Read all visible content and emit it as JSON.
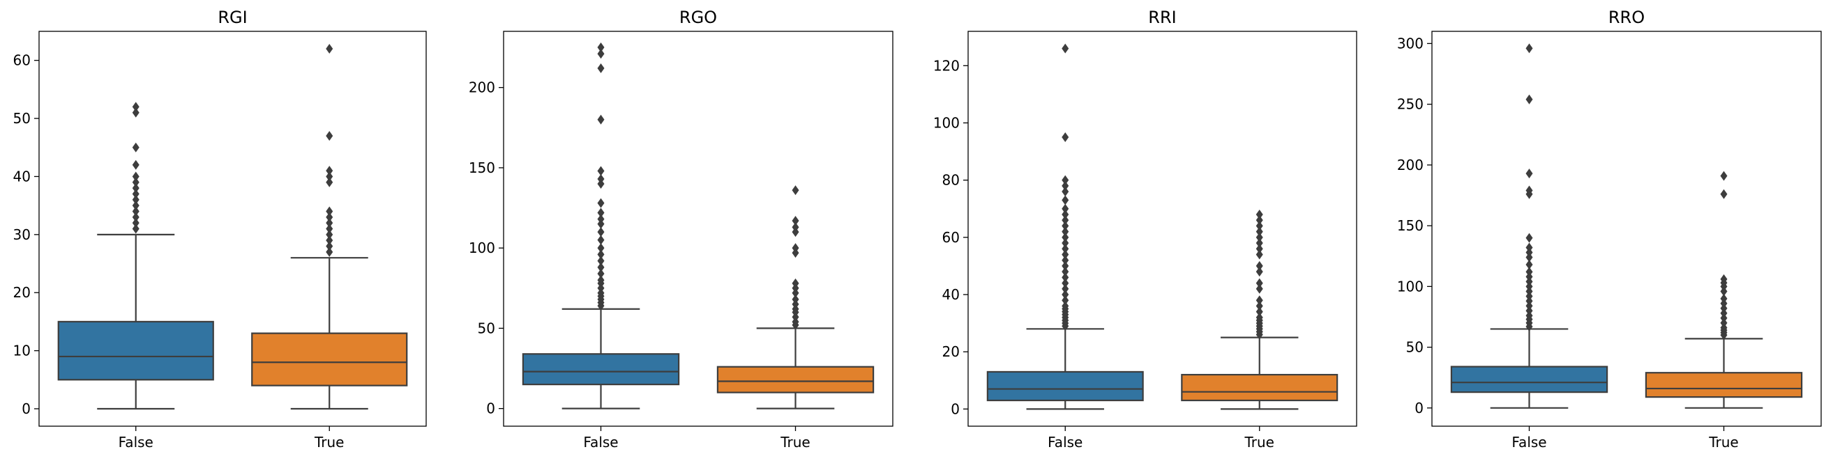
{
  "chart_data": [
    {
      "type": "box",
      "title": "RGI",
      "xlabel": "",
      "ylabel": "",
      "categories": [
        "False",
        "True"
      ],
      "ylim": [
        -3,
        65
      ],
      "yticks": [
        0,
        10,
        20,
        30,
        40,
        50,
        60
      ],
      "grid": false,
      "boxes": [
        {
          "category": "False",
          "color": "#3274a1",
          "min": 0,
          "q1": 5,
          "median": 9,
          "q3": 15,
          "max": 30,
          "outliers": [
            31,
            32,
            33,
            34,
            35,
            36,
            37,
            38,
            39,
            40,
            42,
            45,
            51,
            52
          ]
        },
        {
          "category": "True",
          "color": "#e1812c",
          "min": 0,
          "q1": 4,
          "median": 8,
          "q3": 13,
          "max": 26,
          "outliers": [
            27,
            28,
            29,
            30,
            31,
            32,
            33,
            34,
            39,
            40,
            41,
            47,
            62
          ]
        }
      ]
    },
    {
      "type": "box",
      "title": "RGO",
      "xlabel": "",
      "ylabel": "",
      "categories": [
        "False",
        "True"
      ],
      "ylim": [
        -11,
        235
      ],
      "yticks": [
        0,
        50,
        100,
        150,
        200
      ],
      "grid": false,
      "boxes": [
        {
          "category": "False",
          "color": "#3274a1",
          "min": 0,
          "q1": 15,
          "median": 23,
          "q3": 34,
          "max": 62,
          "outliers": [
            64,
            66,
            68,
            70,
            72,
            75,
            78,
            80,
            84,
            88,
            92,
            96,
            100,
            105,
            110,
            115,
            118,
            122,
            128,
            140,
            143,
            148,
            180,
            212,
            221,
            225
          ]
        },
        {
          "category": "True",
          "color": "#e1812c",
          "min": 0,
          "q1": 10,
          "median": 17,
          "q3": 26,
          "max": 50,
          "outliers": [
            52,
            54,
            57,
            60,
            62,
            65,
            68,
            72,
            75,
            78,
            97,
            100,
            110,
            113,
            117,
            136
          ]
        }
      ]
    },
    {
      "type": "box",
      "title": "RRI",
      "xlabel": "",
      "ylabel": "",
      "categories": [
        "False",
        "True"
      ],
      "ylim": [
        -6,
        132
      ],
      "yticks": [
        0,
        20,
        40,
        60,
        80,
        100,
        120
      ],
      "grid": false,
      "boxes": [
        {
          "category": "False",
          "color": "#3274a1",
          "min": 0,
          "q1": 3,
          "median": 7,
          "q3": 13,
          "max": 28,
          "outliers": [
            29,
            30,
            31,
            32,
            33,
            34,
            35,
            36,
            38,
            40,
            42,
            44,
            46,
            48,
            50,
            52,
            54,
            56,
            58,
            60,
            62,
            64,
            66,
            68,
            70,
            73,
            76,
            78,
            80,
            95,
            126
          ]
        },
        {
          "category": "True",
          "color": "#e1812c",
          "min": 0,
          "q1": 3,
          "median": 6,
          "q3": 12,
          "max": 25,
          "outliers": [
            26,
            27,
            28,
            29,
            30,
            31,
            32,
            34,
            36,
            38,
            42,
            44,
            48,
            50,
            54,
            56,
            58,
            60,
            62,
            64,
            66,
            68
          ]
        }
      ]
    },
    {
      "type": "box",
      "title": "RRO",
      "xlabel": "",
      "ylabel": "",
      "categories": [
        "False",
        "True"
      ],
      "ylim": [
        -15,
        310
      ],
      "yticks": [
        0,
        50,
        100,
        150,
        200,
        250,
        300
      ],
      "grid": false,
      "boxes": [
        {
          "category": "False",
          "color": "#3274a1",
          "min": 0,
          "q1": 13,
          "median": 21,
          "q3": 34,
          "max": 65,
          "outliers": [
            67,
            70,
            73,
            76,
            80,
            84,
            88,
            92,
            96,
            100,
            104,
            108,
            112,
            118,
            124,
            128,
            132,
            140,
            176,
            179,
            193,
            254,
            296
          ]
        },
        {
          "category": "True",
          "color": "#e1812c",
          "min": 0,
          "q1": 9,
          "median": 16,
          "q3": 29,
          "max": 57,
          "outliers": [
            60,
            62,
            64,
            66,
            70,
            74,
            78,
            82,
            86,
            90,
            96,
            100,
            103,
            106,
            176,
            191
          ]
        }
      ]
    }
  ]
}
